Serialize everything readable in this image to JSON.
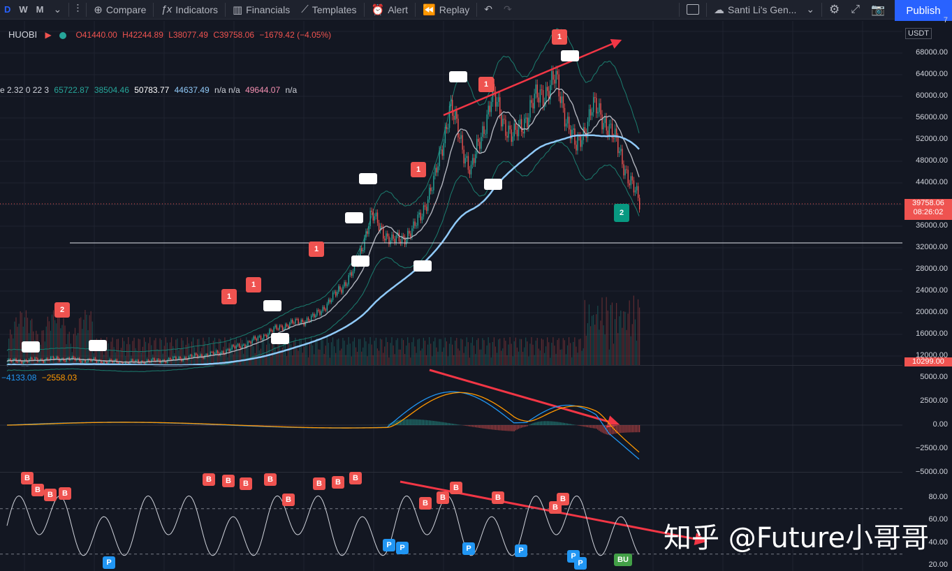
{
  "toolbar": {
    "timeframes": [
      "D",
      "W",
      "M"
    ],
    "active_timeframe": "D",
    "compare": "Compare",
    "indicators": "Indicators",
    "financials": "Financials",
    "templates": "Templates",
    "alert": "Alert",
    "replay": "Replay",
    "layout_name": "Santi Li's Gen...",
    "publish": "Publish"
  },
  "legend": {
    "exchange": "HUOBI",
    "open": "O41440.00",
    "high": "H42244.89",
    "low": "L38077.49",
    "close": "C39758.06",
    "change": "−1679.42 (−4.05%)",
    "ind_prefix": "e 2.32 0 22 3",
    "ind_v1": "65722.87",
    "ind_v2": "38504.46",
    "ind_v3": "50783.77",
    "ind_v4": "44637.49",
    "ind_v5": "n/a n/a",
    "ind_v6": "49644.07",
    "ind_v7": "n/a"
  },
  "macd_legend": {
    "macd": "−4133.08",
    "signal": "−2558.03"
  },
  "currency_badge": "USDT",
  "price_axis": [
    "7",
    "68000.00",
    "64000.00",
    "60000.00",
    "56000.00",
    "52000.00",
    "48000.00",
    "44000.00",
    "36000.00",
    "32000.00",
    "28000.00",
    "24000.00",
    "20000.00",
    "16000.00",
    "12000.00"
  ],
  "current_price": "39758.06",
  "countdown": "08:26:02",
  "bottom_price": "10299.00",
  "macd_axis": [
    "5000.00",
    "2500.00",
    "0.00",
    "−2500.00",
    "−5000.00"
  ],
  "rsi_axis": [
    "80.00",
    "60.00",
    "40.00",
    "20.00"
  ],
  "watermark": "知乎 @Future小哥哥",
  "colors": {
    "bg": "#131722",
    "up": "#26a69a",
    "down": "#ef5350",
    "sma_slow": "#90caf9",
    "sma_mid": "#b2b5be",
    "arrow": "#f23645",
    "macd": "#2196f3",
    "signal": "#ff9800",
    "publish": "#2962ff"
  },
  "signals": {
    "red_labels": [
      "1",
      "1",
      "1",
      "1",
      "1",
      "1",
      "2"
    ],
    "green_label": "2",
    "rsi_b": "B",
    "rsi_p": "P",
    "rsi_bu": "BU"
  }
}
